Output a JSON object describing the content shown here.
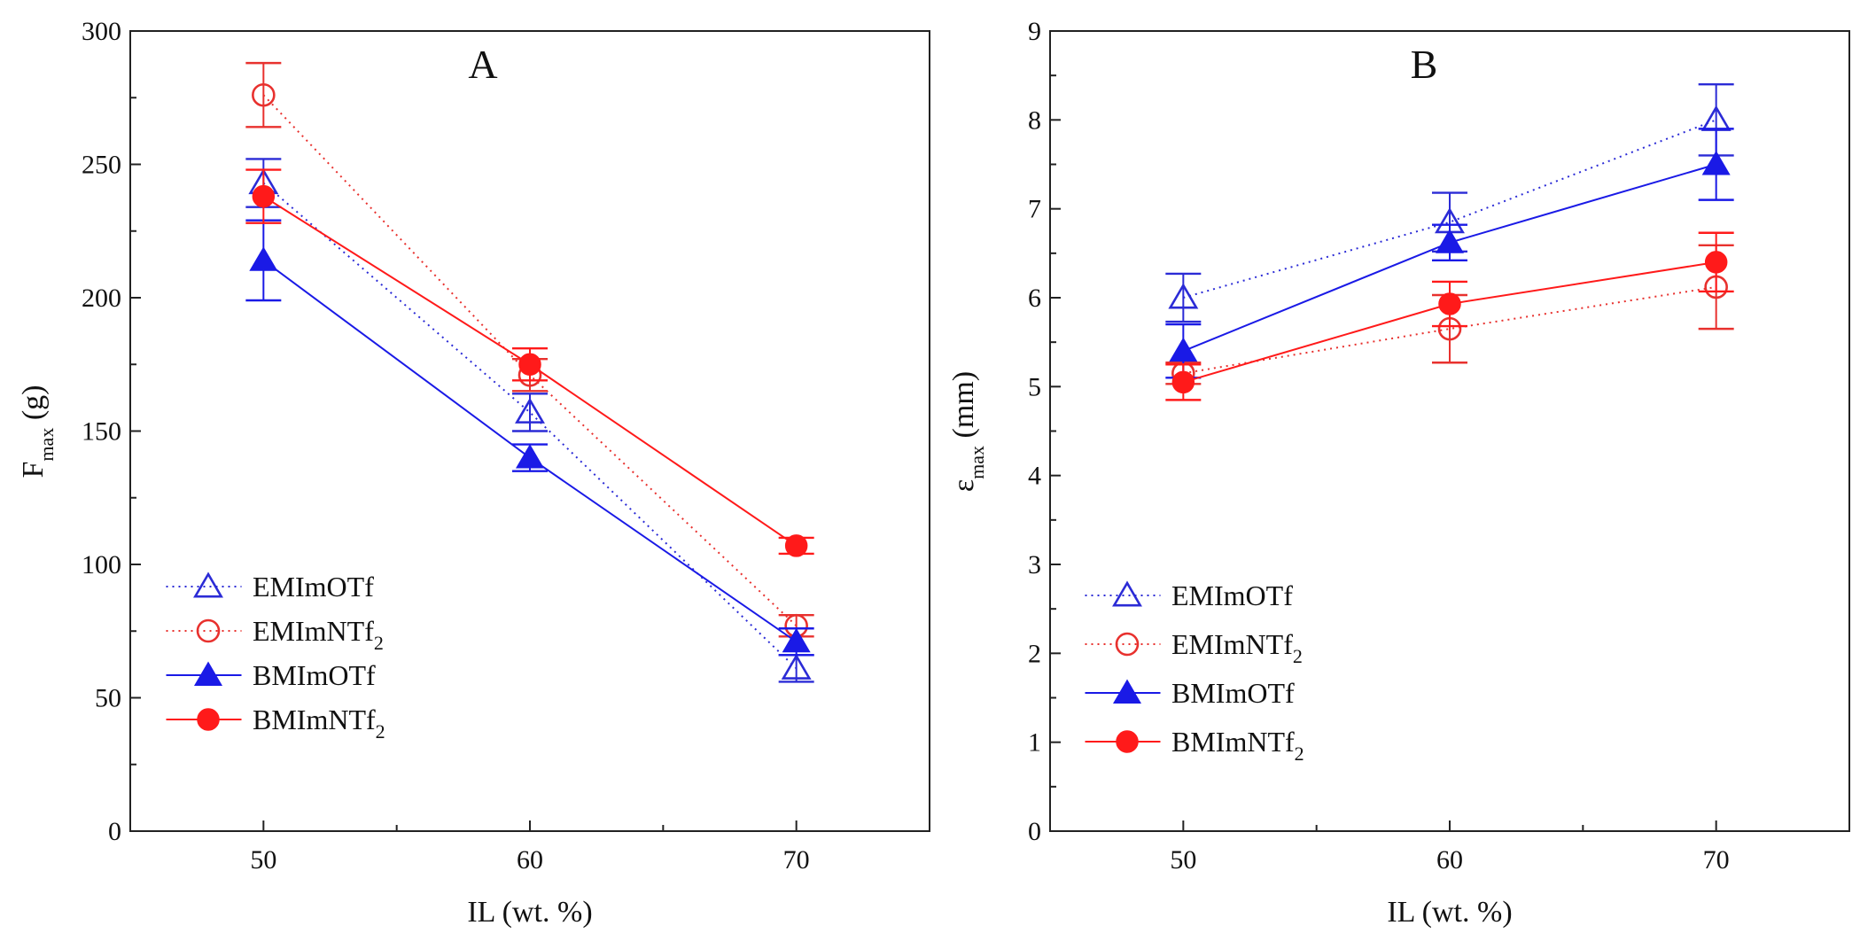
{
  "chart_data": [
    {
      "type": "line",
      "panel_label": "A",
      "x": [
        50,
        60,
        70
      ],
      "xlim": [
        45,
        75
      ],
      "ylim": [
        0,
        300
      ],
      "xticks": [
        50,
        60,
        70
      ],
      "yticks": [
        0,
        50,
        100,
        150,
        200,
        250,
        300
      ],
      "xlabel": "IL (wt. %)",
      "ylabel": {
        "base": "F",
        "sub": "max",
        "unit": " (g)"
      },
      "legend_position": "bottom-left",
      "series": [
        {
          "name": "EMImOTf",
          "sub": "",
          "color": "#2b2bd6",
          "marker": "triangle-open",
          "line": "dotted",
          "values": [
            243,
            157,
            61
          ],
          "errors": [
            9,
            7,
            5
          ]
        },
        {
          "name": "EMImNTf",
          "sub": "2",
          "color": "#e8312e",
          "marker": "circle-open",
          "line": "dotted",
          "values": [
            276,
            171,
            77
          ],
          "errors": [
            12,
            6,
            4
          ]
        },
        {
          "name": "BMImOTf",
          "sub": "",
          "color": "#1a1ae6",
          "marker": "triangle-filled",
          "line": "solid",
          "values": [
            214,
            140,
            71
          ],
          "errors": [
            15,
            5,
            5
          ]
        },
        {
          "name": "BMImNTf",
          "sub": "2",
          "color": "#ff1a1a",
          "marker": "circle-filled",
          "line": "solid",
          "values": [
            238,
            175,
            107
          ],
          "errors": [
            10,
            6,
            3
          ]
        }
      ]
    },
    {
      "type": "line",
      "panel_label": "B",
      "x": [
        50,
        60,
        70
      ],
      "xlim": [
        45,
        75
      ],
      "ylim": [
        0,
        9
      ],
      "xticks": [
        50,
        60,
        70
      ],
      "yticks": [
        0,
        1,
        2,
        3,
        4,
        5,
        6,
        7,
        8,
        9
      ],
      "xlabel": "IL (wt. %)",
      "ylabel": {
        "base": "ε",
        "sub": "max",
        "unit": " (mm)"
      },
      "legend_position": "bottom-left",
      "series": [
        {
          "name": "EMImOTf",
          "sub": "",
          "color": "#2b2bd6",
          "marker": "triangle-open",
          "line": "dotted",
          "values": [
            6.0,
            6.85,
            8.0
          ],
          "errors": [
            0.27,
            0.33,
            0.4
          ]
        },
        {
          "name": "EMImNTf",
          "sub": "2",
          "color": "#e8312e",
          "marker": "circle-open",
          "line": "dotted",
          "values": [
            5.15,
            5.65,
            6.12
          ],
          "errors": [
            0.12,
            0.38,
            0.47
          ]
        },
        {
          "name": "BMImOTf",
          "sub": "",
          "color": "#1a1ae6",
          "marker": "triangle-filled",
          "line": "solid",
          "values": [
            5.4,
            6.62,
            7.5
          ],
          "errors": [
            0.3,
            0.2,
            0.4
          ]
        },
        {
          "name": "BMImNTf",
          "sub": "2",
          "color": "#ff1a1a",
          "marker": "circle-filled",
          "line": "solid",
          "values": [
            5.05,
            5.93,
            6.4
          ],
          "errors": [
            0.2,
            0.25,
            0.33
          ]
        }
      ]
    }
  ]
}
